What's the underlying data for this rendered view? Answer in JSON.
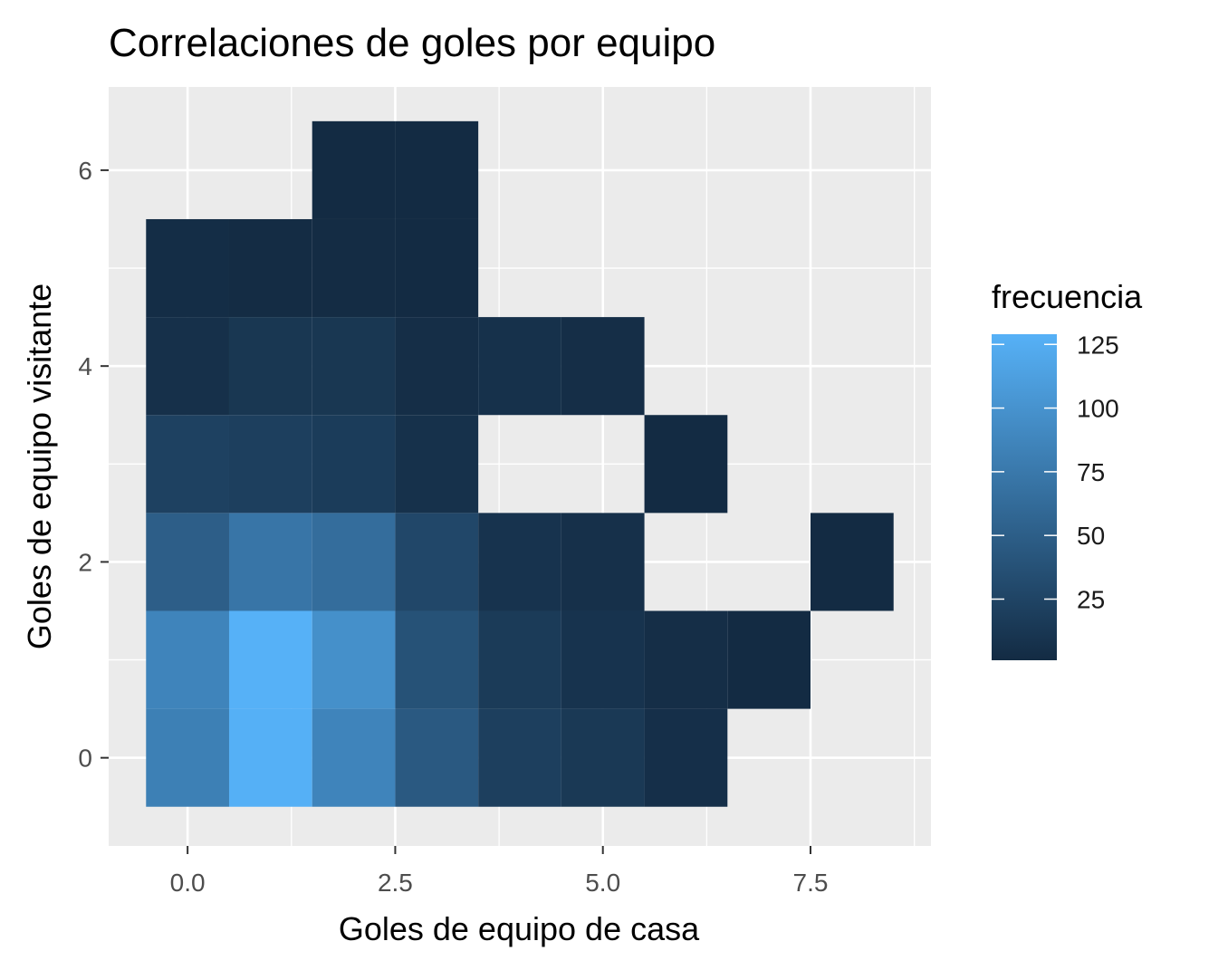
{
  "chart_data": {
    "type": "heatmap",
    "title": "Correlaciones de goles por equipo",
    "xlabel": "Goles de equipo de casa",
    "ylabel": "Goles de equipo visitante",
    "xlim": [
      -0.95,
      8.95
    ],
    "ylim": [
      -0.9,
      6.85
    ],
    "x_ticks": [
      0.0,
      2.5,
      5.0,
      7.5
    ],
    "x_tick_labels": [
      "0.0",
      "2.5",
      "5.0",
      "7.5"
    ],
    "y_ticks": [
      0,
      2,
      4,
      6
    ],
    "y_tick_labels": [
      "0",
      "2",
      "4",
      "6"
    ],
    "grid": true,
    "legend": {
      "title": "frecuencia",
      "position": "right",
      "breaks": [
        25,
        50,
        75,
        100,
        125
      ],
      "break_labels": [
        "25",
        "50",
        "75",
        "100",
        "125"
      ],
      "min": 1,
      "max": 129,
      "low_color": "#132B43",
      "high_color": "#56B1F7"
    },
    "cells": [
      {
        "x": 0,
        "y": 0,
        "value": 82
      },
      {
        "x": 1,
        "y": 0,
        "value": 128
      },
      {
        "x": 2,
        "y": 0,
        "value": 86
      },
      {
        "x": 3,
        "y": 0,
        "value": 45
      },
      {
        "x": 4,
        "y": 0,
        "value": 20
      },
      {
        "x": 5,
        "y": 0,
        "value": 14
      },
      {
        "x": 6,
        "y": 0,
        "value": 5
      },
      {
        "x": 0,
        "y": 1,
        "value": 86
      },
      {
        "x": 1,
        "y": 1,
        "value": 129
      },
      {
        "x": 2,
        "y": 1,
        "value": 97
      },
      {
        "x": 3,
        "y": 1,
        "value": 38
      },
      {
        "x": 4,
        "y": 1,
        "value": 16
      },
      {
        "x": 5,
        "y": 1,
        "value": 9
      },
      {
        "x": 6,
        "y": 1,
        "value": 4
      },
      {
        "x": 7,
        "y": 1,
        "value": 1
      },
      {
        "x": 0,
        "y": 2,
        "value": 50
      },
      {
        "x": 1,
        "y": 2,
        "value": 72
      },
      {
        "x": 2,
        "y": 2,
        "value": 64
      },
      {
        "x": 3,
        "y": 2,
        "value": 28
      },
      {
        "x": 4,
        "y": 2,
        "value": 9
      },
      {
        "x": 5,
        "y": 2,
        "value": 6
      },
      {
        "x": 8,
        "y": 2,
        "value": 1
      },
      {
        "x": 0,
        "y": 3,
        "value": 22
      },
      {
        "x": 1,
        "y": 3,
        "value": 20
      },
      {
        "x": 2,
        "y": 3,
        "value": 17
      },
      {
        "x": 3,
        "y": 3,
        "value": 7
      },
      {
        "x": 6,
        "y": 3,
        "value": 1
      },
      {
        "x": 0,
        "y": 4,
        "value": 6
      },
      {
        "x": 1,
        "y": 4,
        "value": 12
      },
      {
        "x": 2,
        "y": 4,
        "value": 12
      },
      {
        "x": 3,
        "y": 4,
        "value": 4
      },
      {
        "x": 4,
        "y": 4,
        "value": 7
      },
      {
        "x": 5,
        "y": 4,
        "value": 4
      },
      {
        "x": 0,
        "y": 5,
        "value": 3
      },
      {
        "x": 1,
        "y": 5,
        "value": 2
      },
      {
        "x": 2,
        "y": 5,
        "value": 2
      },
      {
        "x": 3,
        "y": 5,
        "value": 1
      },
      {
        "x": 2,
        "y": 6,
        "value": 1
      },
      {
        "x": 3,
        "y": 6,
        "value": 1
      }
    ]
  },
  "colors": {
    "panel_background": "#EBEBEB",
    "grid_major": "#FFFFFF",
    "tick_text": "#4D4D4D"
  }
}
